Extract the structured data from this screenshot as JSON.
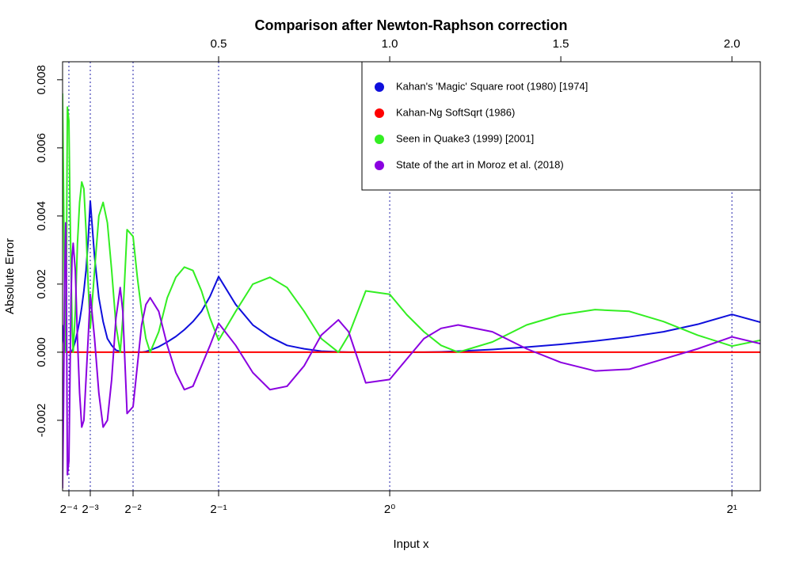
{
  "chart_data": {
    "type": "line",
    "title": "Comparison after Newton-Raphson correction",
    "x_label": "Input x",
    "y_label": "Absolute Error",
    "x": [
      0.04375,
      0.046875,
      0.05,
      0.053125,
      0.055,
      0.058125,
      0.0625,
      0.065625,
      0.06875,
      0.071875,
      0.075,
      0.08125,
      0.0875,
      0.09375,
      0.1,
      0.10625,
      0.1125,
      0.11875,
      0.125,
      0.1375,
      0.15,
      0.1625,
      0.175,
      0.1875,
      0.2,
      0.2125,
      0.22,
      0.2325,
      0.25,
      0.2625,
      0.275,
      0.2875,
      0.3,
      0.325,
      0.35,
      0.375,
      0.4,
      0.425,
      0.45,
      0.475,
      0.5,
      0.55,
      0.6,
      0.65,
      0.7,
      0.75,
      0.8,
      0.85,
      0.88,
      0.93,
      1,
      1.05,
      1.1,
      1.15,
      1.2,
      1.3,
      1.4,
      1.5,
      1.6,
      1.7,
      1.8,
      1.9,
      2,
      2.083
    ],
    "series": [
      {
        "name": "Kahan's 'Magic' Square root (1980) [1974]",
        "color": "#0f0fdc",
        "values": [
          0.0008,
          0.0004,
          0.00012,
          4e-05,
          0,
          0,
          0,
          0,
          0,
          4e-05,
          0.00012,
          0.00032,
          0.0006,
          0.00092,
          0.00132,
          0.0018,
          0.0024,
          0.00328,
          0.00444,
          0.0028,
          0.0016,
          0.0009,
          0.0004,
          0.0002,
          6e-05,
          2e-05,
          0,
          0,
          0,
          0,
          0,
          2e-05,
          6e-05,
          0.00016,
          0.0003,
          0.00046,
          0.00066,
          0.0009,
          0.0012,
          0.00164,
          0.00222,
          0.0014,
          0.0008,
          0.00045,
          0.0002,
          0.0001,
          3e-05,
          1e-05,
          0,
          0,
          0,
          0,
          0,
          1e-05,
          3e-05,
          8e-05,
          0.00015,
          0.00023,
          0.00033,
          0.00045,
          0.0006,
          0.00082,
          0.00111,
          0.00088
        ]
      },
      {
        "name": "Kahan-Ng SoftSqrt (1986)",
        "color": "#ff0000",
        "values": [
          0,
          0,
          0,
          0,
          0,
          0,
          0,
          0,
          0,
          0,
          0,
          0,
          0,
          0,
          0,
          0,
          0,
          0,
          0,
          0,
          0,
          0,
          0,
          0,
          0,
          0,
          0,
          0,
          0,
          0,
          0,
          0,
          0,
          0,
          0,
          0,
          0,
          0,
          0,
          0,
          0,
          0,
          0,
          0,
          0,
          0,
          0,
          0,
          0,
          0,
          0,
          0,
          0,
          0,
          0,
          0,
          0,
          0,
          0,
          0,
          0,
          0,
          0,
          0
        ]
      },
      {
        "name": "Seen in Quake3 (1999) [2001]",
        "color": "#33ee22",
        "values": [
          0.0076,
          0.0048,
          0.0016,
          0,
          0.002,
          0.0072,
          0.0068,
          0.0044,
          0.0024,
          0.0008,
          0,
          0.0012,
          0.0032,
          0.0044,
          0.005,
          0.0048,
          0.0036,
          0.002,
          0.0007,
          0.0024,
          0.004,
          0.0044,
          0.0038,
          0.0024,
          0.0008,
          0,
          0.001,
          0.0036,
          0.0034,
          0.0022,
          0.0012,
          0.0004,
          0,
          0.0006,
          0.0016,
          0.0022,
          0.0025,
          0.0024,
          0.0018,
          0.001,
          0.00035,
          0.0012,
          0.002,
          0.0022,
          0.0019,
          0.0012,
          0.0004,
          0,
          0.0005,
          0.0018,
          0.0017,
          0.0011,
          0.0006,
          0.0002,
          0,
          0.0003,
          0.0008,
          0.0011,
          0.00125,
          0.0012,
          0.0009,
          0.0005,
          0.00018,
          0.00035
        ]
      },
      {
        "name": "State of the art in Moroz et al. (2018)",
        "color": "#8a00e0",
        "values": [
          -0.004,
          -0.0016,
          0.002,
          0.0038,
          0.0024,
          -0.0036,
          -0.0032,
          -0.0008,
          0.0016,
          0.0028,
          0.0032,
          0.0024,
          0.0004,
          -0.0012,
          -0.0022,
          -0.002,
          -0.0008,
          0.0004,
          0.0017,
          0.0004,
          -0.0012,
          -0.0022,
          -0.002,
          -0.0008,
          0.001,
          0.0019,
          0.0012,
          -0.0018,
          -0.0016,
          -0.0004,
          0.0008,
          0.0014,
          0.0016,
          0.0012,
          0.0002,
          -0.0006,
          -0.0011,
          -0.001,
          -0.0004,
          0.0002,
          0.00085,
          0.0002,
          -0.0006,
          -0.0011,
          -0.001,
          -0.0004,
          0.0005,
          0.00095,
          0.0006,
          -0.0009,
          -0.0008,
          -0.0002,
          0.0004,
          0.0007,
          0.0008,
          0.0006,
          0.0001,
          -0.0003,
          -0.00055,
          -0.0005,
          -0.0002,
          0.0001,
          0.00045,
          0.00025
        ]
      }
    ],
    "xlim": [
      0.044,
      2.083
    ],
    "ylim": [
      -0.00407,
      0.00853
    ],
    "xticks": [
      {
        "value": 0.0625,
        "label": "2⁻⁴"
      },
      {
        "value": 0.125,
        "label": "2⁻³"
      },
      {
        "value": 0.25,
        "label": "2⁻²"
      },
      {
        "value": 0.5,
        "label": "2⁻¹"
      },
      {
        "value": 1,
        "label": "2⁰"
      },
      {
        "value": 2,
        "label": "2¹"
      }
    ],
    "x2ticks": [
      0.5,
      {
        "value": 1,
        "label": "1.0"
      },
      1.5,
      {
        "value": 2,
        "label": "2.0"
      }
    ],
    "yticks": [
      -0.002,
      {
        "value": 0,
        "label": "0.000"
      },
      0.002,
      0.004,
      0.006,
      0.008
    ],
    "xgrid": true,
    "legend": "top-right"
  }
}
